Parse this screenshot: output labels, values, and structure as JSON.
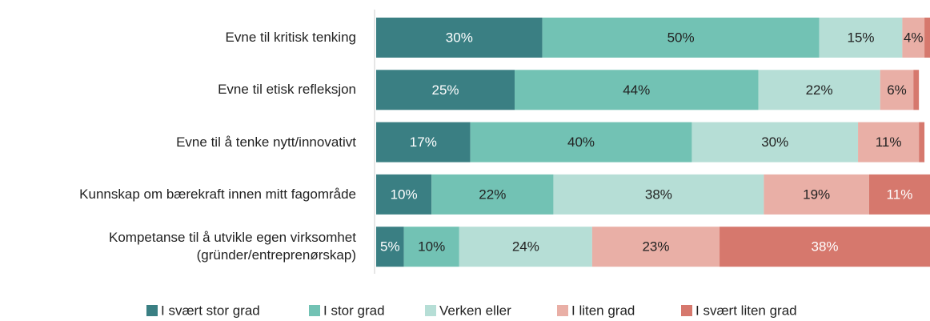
{
  "chart_data": {
    "type": "stacked-bar-horizontal",
    "categories": [
      "Evne til kritisk tenking",
      "Evne til etisk refleksjon",
      "Evne til å tenke nytt/innovativt",
      "Kunnskap om bærekraft innen mitt fagområde",
      "Kompetanse til å utvikle egen virksomhet\n(gründer/entreprenørskap)"
    ],
    "xlim": [
      0,
      100
    ],
    "series": [
      {
        "name": "I svært stor grad",
        "color": "#3a7f83",
        "values": [
          30,
          25,
          17,
          10,
          5
        ],
        "value_labels": [
          "30%",
          "25%",
          "17%",
          "10%",
          "5%"
        ]
      },
      {
        "name": "I stor grad",
        "color": "#72c2b4",
        "values": [
          50,
          44,
          40,
          22,
          10
        ],
        "value_labels": [
          "50%",
          "44%",
          "40%",
          "22%",
          "10%"
        ]
      },
      {
        "name": "Verken eller",
        "color": "#b6ded6",
        "values": [
          15,
          22,
          30,
          38,
          24
        ],
        "value_labels": [
          "15%",
          "22%",
          "30%",
          "38%",
          "24%"
        ]
      },
      {
        "name": "I liten grad",
        "color": "#e9afa6",
        "values": [
          4,
          6,
          11,
          19,
          23
        ],
        "value_labels": [
          "4%",
          "6%",
          "11%",
          "19%",
          "23%"
        ]
      },
      {
        "name": "I svært liten grad",
        "color": "#d6786d",
        "values": [
          1,
          1,
          1,
          11,
          38
        ],
        "value_labels": [
          null,
          null,
          null,
          "11%",
          "38%"
        ]
      }
    ],
    "legend": "bottom"
  }
}
